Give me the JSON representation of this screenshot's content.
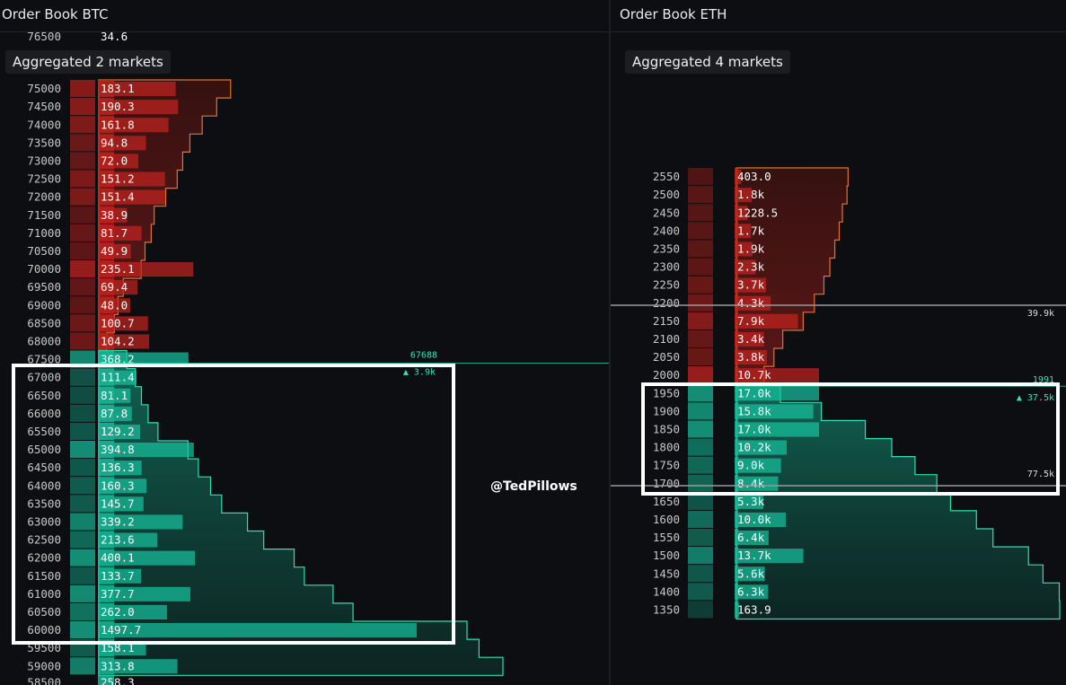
{
  "watermark": "@TedPillows",
  "colors": {
    "ask": "#c4231f",
    "ask_dark": "#5a1410",
    "bid": "#17c3a0",
    "bid_dark": "#0d5c4a",
    "depth_ask_line": "#e0742a",
    "depth_bid_line": "#2ee0b0",
    "text_price": "#c8c8c8",
    "text_size": "#ffffff",
    "annot": "#2ee6b5"
  },
  "chart_data": [
    {
      "type": "bar",
      "title": "Order Book BTC",
      "subtitle": "Aggregated 2 markets",
      "top_partial_label": {
        "price": "76500",
        "size": "34.6"
      },
      "asks": [
        {
          "price": "75000",
          "size": "183.1",
          "value": 183.1
        },
        {
          "price": "74500",
          "size": "190.3",
          "value": 190.3
        },
        {
          "price": "74000",
          "size": "161.8",
          "value": 161.8
        },
        {
          "price": "73500",
          "size": "94.8",
          "value": 94.8
        },
        {
          "price": "73000",
          "size": "72.0",
          "value": 72.0
        },
        {
          "price": "72500",
          "size": "151.2",
          "value": 151.2
        },
        {
          "price": "72000",
          "size": "151.4",
          "value": 151.4
        },
        {
          "price": "71500",
          "size": "38.9",
          "value": 38.9
        },
        {
          "price": "71000",
          "size": "81.7",
          "value": 81.7
        },
        {
          "price": "70500",
          "size": "49.9",
          "value": 49.9
        },
        {
          "price": "70000",
          "size": "235.1",
          "value": 235.1
        },
        {
          "price": "69500",
          "size": "69.4",
          "value": 69.4
        },
        {
          "price": "69000",
          "size": "48.0",
          "value": 48.0
        },
        {
          "price": "68500",
          "size": "100.7",
          "value": 100.7
        },
        {
          "price": "68000",
          "size": "104.2",
          "value": 104.2
        }
      ],
      "bids": [
        {
          "price": "67500",
          "size": "368.2",
          "value": 368.2
        },
        {
          "price": "67000",
          "size": "111.4",
          "value": 111.4
        },
        {
          "price": "66500",
          "size": "81.1",
          "value": 81.1
        },
        {
          "price": "66000",
          "size": "87.8",
          "value": 87.8
        },
        {
          "price": "65500",
          "size": "129.2",
          "value": 129.2
        },
        {
          "price": "65000",
          "size": "394.8",
          "value": 394.8
        },
        {
          "price": "64500",
          "size": "136.3",
          "value": 136.3
        },
        {
          "price": "64000",
          "size": "160.3",
          "value": 160.3
        },
        {
          "price": "63500",
          "size": "145.7",
          "value": 145.7
        },
        {
          "price": "63000",
          "size": "339.2",
          "value": 339.2
        },
        {
          "price": "62500",
          "size": "213.6",
          "value": 213.6
        },
        {
          "price": "62000",
          "size": "400.1",
          "value": 400.1
        },
        {
          "price": "61500",
          "size": "133.7",
          "value": 133.7
        },
        {
          "price": "61000",
          "size": "377.7",
          "value": 377.7
        },
        {
          "price": "60500",
          "size": "262.0",
          "value": 262.0
        },
        {
          "price": "60000",
          "size": "1497.7",
          "value": 1497.7
        },
        {
          "price": "59500",
          "size": "158.1",
          "value": 158.1
        },
        {
          "price": "59000",
          "size": "313.8",
          "value": 313.8
        }
      ],
      "bottom_partial_label": {
        "price": "58500",
        "size": "258.3"
      },
      "mid_price_label": "67688",
      "cumulative_label": "▲ 3.9k",
      "highlight": "60000–67000"
    },
    {
      "type": "bar",
      "title": "Order Book ETH",
      "subtitle": "Aggregated 4 markets",
      "asks": [
        {
          "price": "2550",
          "size": "403.0",
          "value": 403
        },
        {
          "price": "2500",
          "size": "1.8k",
          "value": 1800
        },
        {
          "price": "2450",
          "size": "1228.5",
          "value": 1228.5
        },
        {
          "price": "2400",
          "size": "1.7k",
          "value": 1700
        },
        {
          "price": "2350",
          "size": "1.9k",
          "value": 1900
        },
        {
          "price": "2300",
          "size": "2.3k",
          "value": 2300
        },
        {
          "price": "2250",
          "size": "3.7k",
          "value": 3700
        },
        {
          "price": "2200",
          "size": "4.3k",
          "value": 4300
        },
        {
          "price": "2150",
          "size": "7.9k",
          "value": 7900
        },
        {
          "price": "2100",
          "size": "3.4k",
          "value": 3400
        },
        {
          "price": "2050",
          "size": "3.8k",
          "value": 3800
        },
        {
          "price": "2000",
          "size": "10.7k",
          "value": 10700
        }
      ],
      "bids": [
        {
          "price": "1950",
          "size": "17.0k",
          "value": 17000
        },
        {
          "price": "1900",
          "size": "15.8k",
          "value": 15800
        },
        {
          "price": "1850",
          "size": "17.0k",
          "value": 17000
        },
        {
          "price": "1800",
          "size": "10.2k",
          "value": 10200
        },
        {
          "price": "1750",
          "size": "9.0k",
          "value": 9000
        },
        {
          "price": "1700",
          "size": "8.4k",
          "value": 8400
        },
        {
          "price": "1650",
          "size": "5.3k",
          "value": 5300
        },
        {
          "price": "1600",
          "size": "10.0k",
          "value": 10000
        },
        {
          "price": "1550",
          "size": "6.4k",
          "value": 6400
        },
        {
          "price": "1500",
          "size": "13.7k",
          "value": 13700
        },
        {
          "price": "1450",
          "size": "5.6k",
          "value": 5600
        },
        {
          "price": "1400",
          "size": "6.3k",
          "value": 6300
        },
        {
          "price": "1350",
          "size": "163.9",
          "value": 163.9
        }
      ],
      "ask_cumulative_label": "39.9k",
      "mid_price_label": "1991",
      "cumulative_label": "▲ 37.5k",
      "bid_cumulative_label": "77.5k",
      "highlight": "1700–1950"
    }
  ]
}
